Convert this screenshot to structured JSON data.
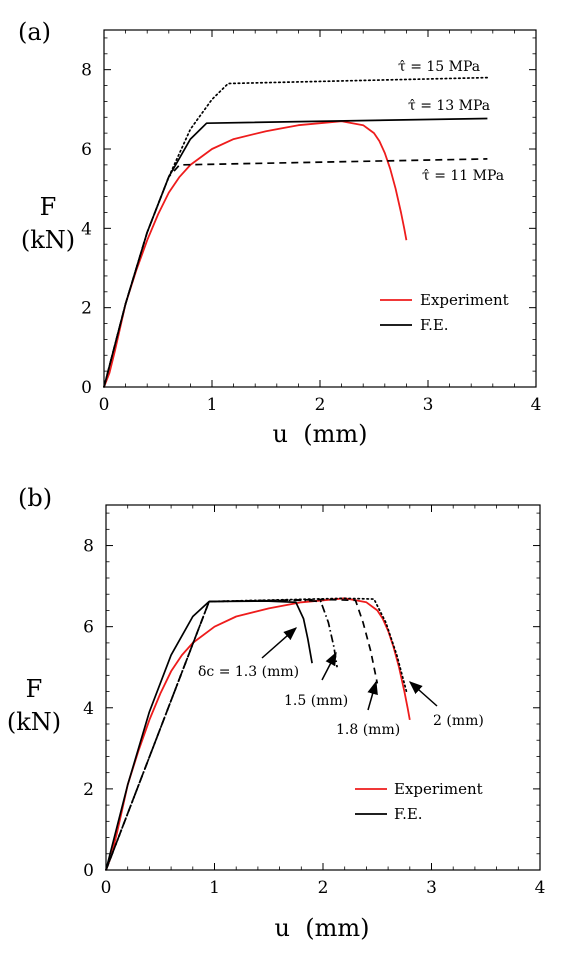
{
  "chart_data": [
    {
      "panel_label": "(a)",
      "type": "line",
      "xlabel": "u  (mm)",
      "ylabel_top": "F",
      "ylabel_bottom": "(kN)",
      "xlim": [
        0,
        4
      ],
      "ylim": [
        0,
        9
      ],
      "xticks": [
        "0",
        "1",
        "2",
        "3",
        "4"
      ],
      "yticks": [
        "0",
        "2",
        "4",
        "6",
        "8"
      ],
      "legend": [
        {
          "label": "Experiment",
          "color": "#ee1c1c"
        },
        {
          "label": "F.E.",
          "color": "#000000"
        }
      ],
      "annotations": [
        {
          "text": "τ̂ = 15 MPa"
        },
        {
          "text": "τ̂ = 13 MPa"
        },
        {
          "text": "τ̂ = 11 MPa"
        }
      ],
      "series": [
        {
          "kind": "experiment",
          "color": "#ee1c1c",
          "style": "solid",
          "x": [
            0,
            0.05,
            0.1,
            0.15,
            0.2,
            0.3,
            0.4,
            0.5,
            0.6,
            0.7,
            0.8,
            1.0,
            1.2,
            1.5,
            1.8,
            2.0,
            2.2,
            2.4,
            2.5,
            2.55,
            2.6,
            2.65,
            2.7,
            2.75,
            2.78,
            2.8
          ],
          "y": [
            0,
            0.35,
            0.9,
            1.5,
            2.1,
            2.95,
            3.7,
            4.35,
            4.9,
            5.3,
            5.6,
            6.0,
            6.25,
            6.45,
            6.6,
            6.65,
            6.7,
            6.6,
            6.4,
            6.2,
            5.9,
            5.5,
            5.0,
            4.4,
            4.0,
            3.7
          ]
        },
        {
          "kind": "fe",
          "color": "#000000",
          "style": "dotted",
          "x": [
            0,
            0.2,
            0.4,
            0.6,
            0.8,
            1.0,
            1.15,
            3.55
          ],
          "y": [
            0,
            2.1,
            3.9,
            5.3,
            6.5,
            7.25,
            7.65,
            7.8
          ]
        },
        {
          "kind": "fe",
          "color": "#000000",
          "style": "solid",
          "x": [
            0,
            0.2,
            0.4,
            0.6,
            0.8,
            0.95,
            3.55
          ],
          "y": [
            0,
            2.1,
            3.9,
            5.3,
            6.25,
            6.65,
            6.77
          ]
        },
        {
          "kind": "fe",
          "color": "#000000",
          "style": "dashed",
          "x": [
            0,
            0.2,
            0.4,
            0.6,
            0.7,
            3.55
          ],
          "y": [
            0,
            2.1,
            3.9,
            5.3,
            5.6,
            5.75
          ]
        }
      ]
    },
    {
      "panel_label": "(b)",
      "type": "line",
      "xlabel": "u  (mm)",
      "ylabel_top": "F",
      "ylabel_bottom": "(kN)",
      "xlim": [
        0,
        4
      ],
      "ylim": [
        0,
        9
      ],
      "xticks": [
        "0",
        "1",
        "2",
        "3",
        "4"
      ],
      "yticks": [
        "0",
        "2",
        "4",
        "6",
        "8"
      ],
      "legend": [
        {
          "label": "Experiment",
          "color": "#ee1c1c"
        },
        {
          "label": "F.E.",
          "color": "#000000"
        }
      ],
      "annotations": [
        {
          "text": "δc = 1.3 (mm)"
        },
        {
          "text": "1.5 (mm)"
        },
        {
          "text": "1.8 (mm)"
        },
        {
          "text": "2 (mm)"
        }
      ],
      "series": [
        {
          "kind": "experiment",
          "color": "#ee1c1c",
          "style": "solid",
          "x": [
            0,
            0.05,
            0.1,
            0.15,
            0.2,
            0.3,
            0.4,
            0.5,
            0.6,
            0.7,
            0.8,
            1.0,
            1.2,
            1.5,
            1.8,
            2.0,
            2.2,
            2.4,
            2.5,
            2.55,
            2.6,
            2.65,
            2.7,
            2.75,
            2.78,
            2.8
          ],
          "y": [
            0,
            0.35,
            0.9,
            1.5,
            2.1,
            2.95,
            3.7,
            4.35,
            4.9,
            5.3,
            5.6,
            6.0,
            6.25,
            6.45,
            6.6,
            6.65,
            6.7,
            6.6,
            6.4,
            6.2,
            5.9,
            5.5,
            5.0,
            4.4,
            4.0,
            3.7
          ]
        },
        {
          "kind": "fe",
          "color": "#000000",
          "style": "solid",
          "x": [
            0,
            0.2,
            0.4,
            0.6,
            0.8,
            0.95,
            1.5,
            1.75,
            1.82,
            1.86,
            1.9
          ],
          "y": [
            0,
            2.1,
            3.9,
            5.3,
            6.25,
            6.62,
            6.63,
            6.6,
            6.2,
            5.7,
            5.1
          ]
        },
        {
          "kind": "fe",
          "color": "#000000",
          "style": "dashdot",
          "x": [
            0,
            0.95,
            1.8,
            1.98,
            2.05,
            2.1,
            2.13
          ],
          "y": [
            0,
            6.62,
            6.65,
            6.62,
            6.1,
            5.5,
            5.0
          ]
        },
        {
          "kind": "fe",
          "color": "#000000",
          "style": "dashed",
          "x": [
            0,
            0.95,
            2.0,
            2.3,
            2.37,
            2.44,
            2.5
          ],
          "y": [
            0,
            6.62,
            6.67,
            6.65,
            6.1,
            5.4,
            4.6
          ]
        },
        {
          "kind": "fe",
          "color": "#000000",
          "style": "dotted",
          "x": [
            0,
            0.95,
            2.2,
            2.47,
            2.58,
            2.68,
            2.77
          ],
          "y": [
            0,
            6.62,
            6.7,
            6.68,
            6.1,
            5.3,
            4.4
          ]
        }
      ]
    }
  ]
}
